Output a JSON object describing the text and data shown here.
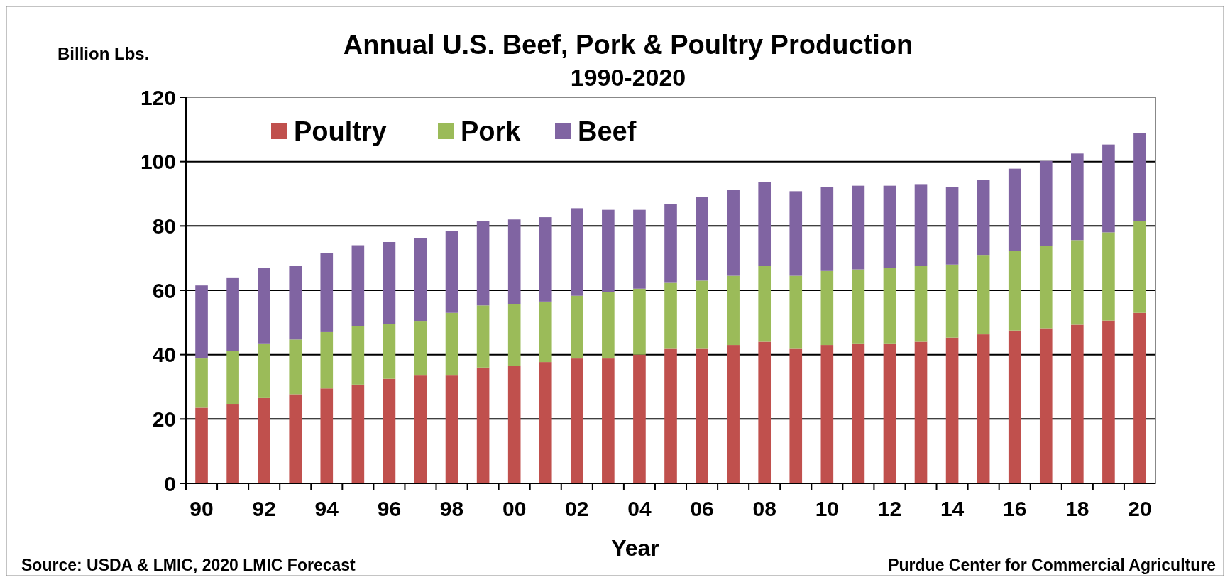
{
  "chart_data": {
    "type": "bar",
    "title": "Annual U.S. Beef, Pork & Poultry Production",
    "subtitle": "1990-2020",
    "ylabel": "Billion Lbs.",
    "xlabel": "Year",
    "annotations": [
      "Source: USDA & LMIC, 2020 LMIC Forecast",
      "Purdue Center for Commercial Agriculture"
    ],
    "categories": [
      "90",
      null,
      "92",
      null,
      "94",
      null,
      "96",
      null,
      "98",
      null,
      "00",
      null,
      "02",
      null,
      "04",
      null,
      "06",
      null,
      "08",
      null,
      "10",
      null,
      "12",
      null,
      "14",
      null,
      "16",
      null,
      "18",
      null,
      "20"
    ],
    "stacked": true,
    "ylim": [
      0,
      120
    ],
    "yticks": [
      0,
      20,
      40,
      60,
      80,
      100,
      120
    ],
    "grid": "y",
    "legend": "top left",
    "series": [
      {
        "name": "Poultry",
        "color": "#c0504d",
        "values": [
          23.5,
          24.7,
          26.5,
          27.7,
          29.5,
          30.7,
          32.5,
          33.5,
          33.5,
          36,
          36.5,
          37.7,
          38.8,
          38.8,
          40,
          41.8,
          41.8,
          43,
          44,
          41.8,
          43,
          43.5,
          43.5,
          44,
          45.3,
          46.3,
          47.5,
          48.2,
          49.3,
          50.6,
          53
        ]
      },
      {
        "name": "Pork",
        "color": "#9bbb59",
        "values": [
          15.3,
          16.5,
          17,
          17,
          17.5,
          18.1,
          17,
          17,
          19.5,
          19.3,
          19.3,
          18.8,
          19.5,
          20.7,
          20.5,
          20.5,
          21.2,
          21.5,
          23.5,
          22.7,
          23,
          23,
          23.5,
          23.5,
          22.7,
          24.7,
          24.7,
          25.7,
          26.3,
          27.4,
          28.5
        ]
      },
      {
        "name": "Beef",
        "color": "#8064a2",
        "values": [
          22.7,
          22.8,
          23.5,
          22.8,
          24.5,
          25.2,
          25.5,
          25.7,
          25.5,
          26.2,
          26.2,
          26.2,
          27.2,
          25.5,
          24.5,
          24.5,
          26,
          26.8,
          26.2,
          26.3,
          26,
          26,
          25.5,
          25.5,
          24,
          23.3,
          25.6,
          26.3,
          26.9,
          27.3,
          27.3
        ]
      }
    ]
  }
}
